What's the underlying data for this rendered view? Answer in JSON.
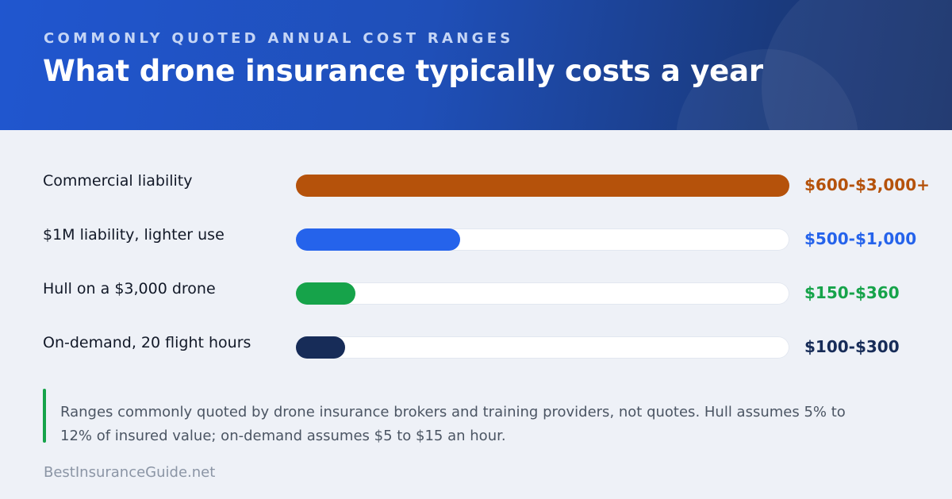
{
  "header": {
    "kicker": "COMMONLY QUOTED ANNUAL COST RANGES",
    "title": "What drone insurance typically costs a year"
  },
  "chart_data": {
    "type": "bar",
    "orientation": "horizontal",
    "title": "What drone insurance typically costs a year",
    "subtitle": "COMMONLY QUOTED ANNUAL COST RANGES",
    "xlim": [
      0,
      3000
    ],
    "grid": false,
    "categories": [
      "Commercial liability",
      "$1M liability, lighter use",
      "Hull on a $3,000 drone",
      "On-demand, 20 flight hours"
    ],
    "values": [
      3000,
      1000,
      360,
      300
    ],
    "data_labels": [
      "$600-$3,000+",
      "$500-$1,000",
      "$150-$360",
      "$100-$300"
    ],
    "colors": [
      "#b5520b",
      "#2563eb",
      "#16a34a",
      "#172c58"
    ]
  },
  "note": "Ranges commonly quoted by drone insurance brokers and training providers, not quotes. Hull assumes 5% to 12% of insured value; on-demand assumes $5 to $15 an hour.",
  "brand": "BestInsuranceGuide.net",
  "colors": {
    "header_start": "#2056cf",
    "header_end": "#17306a",
    "background": "#eef1f7",
    "note_accent": "#16a34a"
  }
}
